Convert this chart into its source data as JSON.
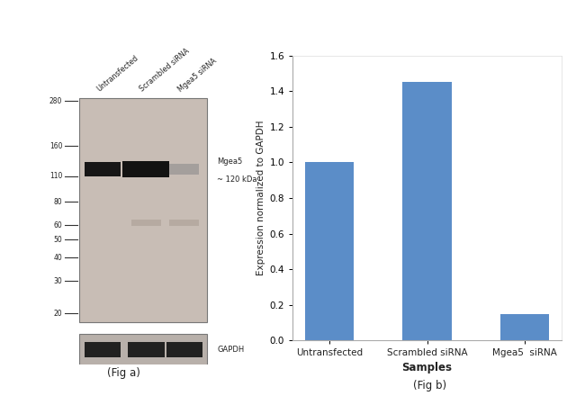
{
  "bar_categories": [
    "Untransfected",
    "Scrambled siRNA",
    "Mgea5  siRNA"
  ],
  "bar_values": [
    1.0,
    1.45,
    0.15
  ],
  "bar_color": "#5b8dc8",
  "ylabel": "Expression normalized to GAPDH",
  "xlabel": "Samples",
  "ylim": [
    0,
    1.6
  ],
  "yticks": [
    0,
    0.2,
    0.4,
    0.6,
    0.8,
    1.0,
    1.2,
    1.4,
    1.6
  ],
  "fig_label_a": "(Fig a)",
  "fig_label_b": "(Fig b)",
  "wb_label_line1": "Mgea5",
  "wb_label_line2": "~ 120 kDa",
  "gapdh_label": "GAPDH",
  "mw_markers": [
    280,
    160,
    110,
    80,
    60,
    50,
    40,
    30,
    20
  ],
  "background_color": "#ffffff",
  "bar_width": 0.5,
  "gel_bg_color": "#c8bdb5",
  "main_band_color": "#0a0a0a",
  "gapdh_band_color": "#111111",
  "gapdh_bg_color": "#b8b0aa",
  "sample_labels": [
    "Untransfected",
    "Scrambled siRNA",
    "Mgea5 siRNA"
  ]
}
